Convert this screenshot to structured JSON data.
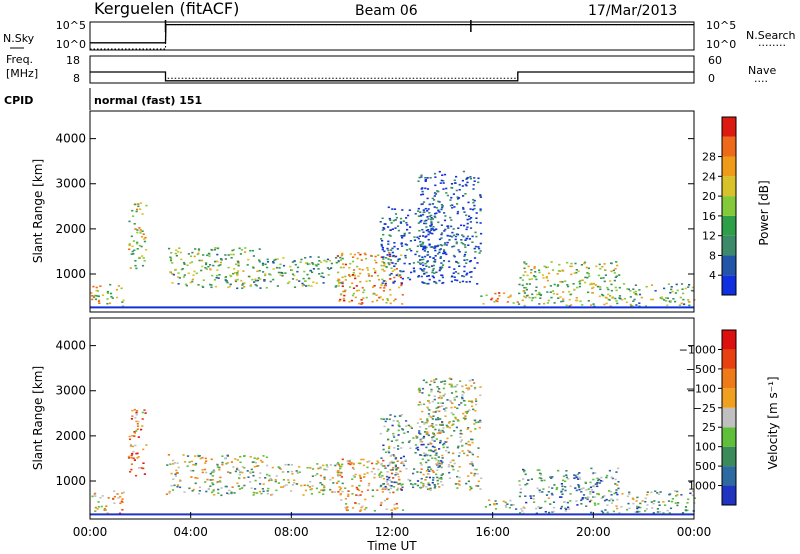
{
  "header": {
    "station": "Kerguelen (fitACF)",
    "beam": "Beam 06",
    "date": "17/Mar/2013"
  },
  "chart_data": [
    {
      "type": "line",
      "name": "noise-panel",
      "left_labels": [
        "N.Sky"
      ],
      "right_labels": [
        "N.Search",
        "........"
      ],
      "left_ticks": [
        "10^5",
        "10^0"
      ],
      "right_ticks": [
        "10^5",
        "10^0"
      ],
      "x": [
        "00:00",
        "03:00",
        "03:01",
        "24:00"
      ],
      "series": [
        {
          "legend_key": "N.Sky",
          "values": [
            1.2,
            1.2,
            4.7,
            4.7
          ]
        },
        {
          "legend_key": "N.Search",
          "values": [
            0.0,
            0.0,
            4.7,
            4.7
          ]
        }
      ],
      "spikes_x": [
        "03:00",
        "15:08"
      ],
      "ylim": [
        0,
        5
      ]
    },
    {
      "type": "line",
      "name": "frequency-panel",
      "left_labels": [
        "Freq.",
        "[MHz]"
      ],
      "right_labels": [
        "Nave",
        "...."
      ],
      "left_ticks": [
        "18",
        "8"
      ],
      "right_ticks": [
        "60",
        "0"
      ],
      "x": [
        "00:00",
        "03:00",
        "03:00",
        "17:00",
        "17:00",
        "24:00"
      ],
      "series": [
        {
          "legend_key": "Freq.",
          "values": [
            12,
            12,
            8.5,
            8.5,
            12,
            12
          ]
        },
        {
          "legend_key": "Nave",
          "values": [
            12,
            12,
            9.5,
            9.5,
            12,
            12
          ]
        }
      ],
      "ylim": [
        8,
        18
      ]
    },
    {
      "type": "table",
      "name": "cpid-row",
      "label": "CPID",
      "value": "normal (fast) 151"
    },
    {
      "type": "heatmap",
      "name": "power-panel",
      "ylabel": "Slant Range [km]",
      "yticks": [
        "1000",
        "2000",
        "3000",
        "4000"
      ],
      "ylim": [
        180,
        4590
      ],
      "xlim": [
        0,
        24
      ],
      "colorbar": {
        "label": "Power [dB]",
        "ticks": [
          "4",
          "8",
          "12",
          "16",
          "20",
          "24",
          "28"
        ],
        "colors": [
          "#1030e0",
          "#2255a8",
          "#3b8a6a",
          "#2f9e48",
          "#84c93a",
          "#d8c22a",
          "#f09a1a",
          "#ee6a18",
          "#dd1a10"
        ]
      },
      "echo_regions": [
        {
          "t": [
            0.0,
            1.3
          ],
          "r": [
            300,
            800
          ],
          "level": 0.55
        },
        {
          "t": [
            1.5,
            2.2
          ],
          "r": [
            1100,
            2600
          ],
          "level": 0.55
        },
        {
          "t": [
            3.0,
            7.0
          ],
          "r": [
            700,
            1600
          ],
          "level": 0.45
        },
        {
          "t": [
            7.0,
            10.0
          ],
          "r": [
            700,
            1400
          ],
          "level": 0.4
        },
        {
          "t": [
            9.8,
            12.4
          ],
          "r": [
            350,
            1500
          ],
          "level": 0.7
        },
        {
          "t": [
            11.5,
            14.0
          ],
          "r": [
            800,
            2500
          ],
          "level": 0.15
        },
        {
          "t": [
            13.0,
            15.5
          ],
          "r": [
            800,
            3300
          ],
          "level": 0.1
        },
        {
          "t": [
            15.5,
            17.0
          ],
          "r": [
            350,
            600
          ],
          "level": 0.7
        },
        {
          "t": [
            17.0,
            21.0
          ],
          "r": [
            300,
            1300
          ],
          "level": 0.5
        },
        {
          "t": [
            21.0,
            24.0
          ],
          "r": [
            300,
            800
          ],
          "level": 0.45
        }
      ]
    },
    {
      "type": "heatmap",
      "name": "velocity-panel",
      "ylabel": "Slant Range [km]",
      "xlabel": "Time UT",
      "xticks": [
        "00:00",
        "04:00",
        "08:00",
        "12:00",
        "16:00",
        "20:00",
        "00:00"
      ],
      "yticks": [
        "1000",
        "2000",
        "3000",
        "4000"
      ],
      "ylim": [
        180,
        4590
      ],
      "xlim": [
        0,
        24
      ],
      "colorbar": {
        "label": "Velocity [m s⁻¹]",
        "ticks": [
          "1000",
          "500",
          "100",
          "25",
          "−25",
          "−100",
          "−500",
          "−1000"
        ],
        "colors": [
          "#2034c0",
          "#2d6aa0",
          "#3a8a5a",
          "#5fbf3a",
          "#c0c0c0",
          "#f0a020",
          "#ee7a18",
          "#e84010",
          "#dd1010"
        ]
      },
      "echo_regions": [
        {
          "t": [
            0.0,
            1.3
          ],
          "r": [
            300,
            800
          ],
          "level": 0.65
        },
        {
          "t": [
            1.5,
            2.2
          ],
          "r": [
            1100,
            2600
          ],
          "level": 0.7
        },
        {
          "t": [
            3.0,
            7.0
          ],
          "r": [
            700,
            1600
          ],
          "level": 0.45
        },
        {
          "t": [
            7.0,
            10.0
          ],
          "r": [
            700,
            1400
          ],
          "level": 0.5
        },
        {
          "t": [
            9.8,
            12.4
          ],
          "r": [
            350,
            1500
          ],
          "level": 0.6
        },
        {
          "t": [
            11.5,
            14.0
          ],
          "r": [
            800,
            2500
          ],
          "level": 0.3
        },
        {
          "t": [
            13.0,
            15.5
          ],
          "r": [
            800,
            3300
          ],
          "level": 0.45
        },
        {
          "t": [
            15.5,
            17.0
          ],
          "r": [
            350,
            600
          ],
          "level": 0.4
        },
        {
          "t": [
            17.0,
            21.0
          ],
          "r": [
            300,
            1300
          ],
          "level": 0.3
        },
        {
          "t": [
            21.0,
            24.0
          ],
          "r": [
            300,
            800
          ],
          "level": 0.35
        }
      ]
    }
  ]
}
